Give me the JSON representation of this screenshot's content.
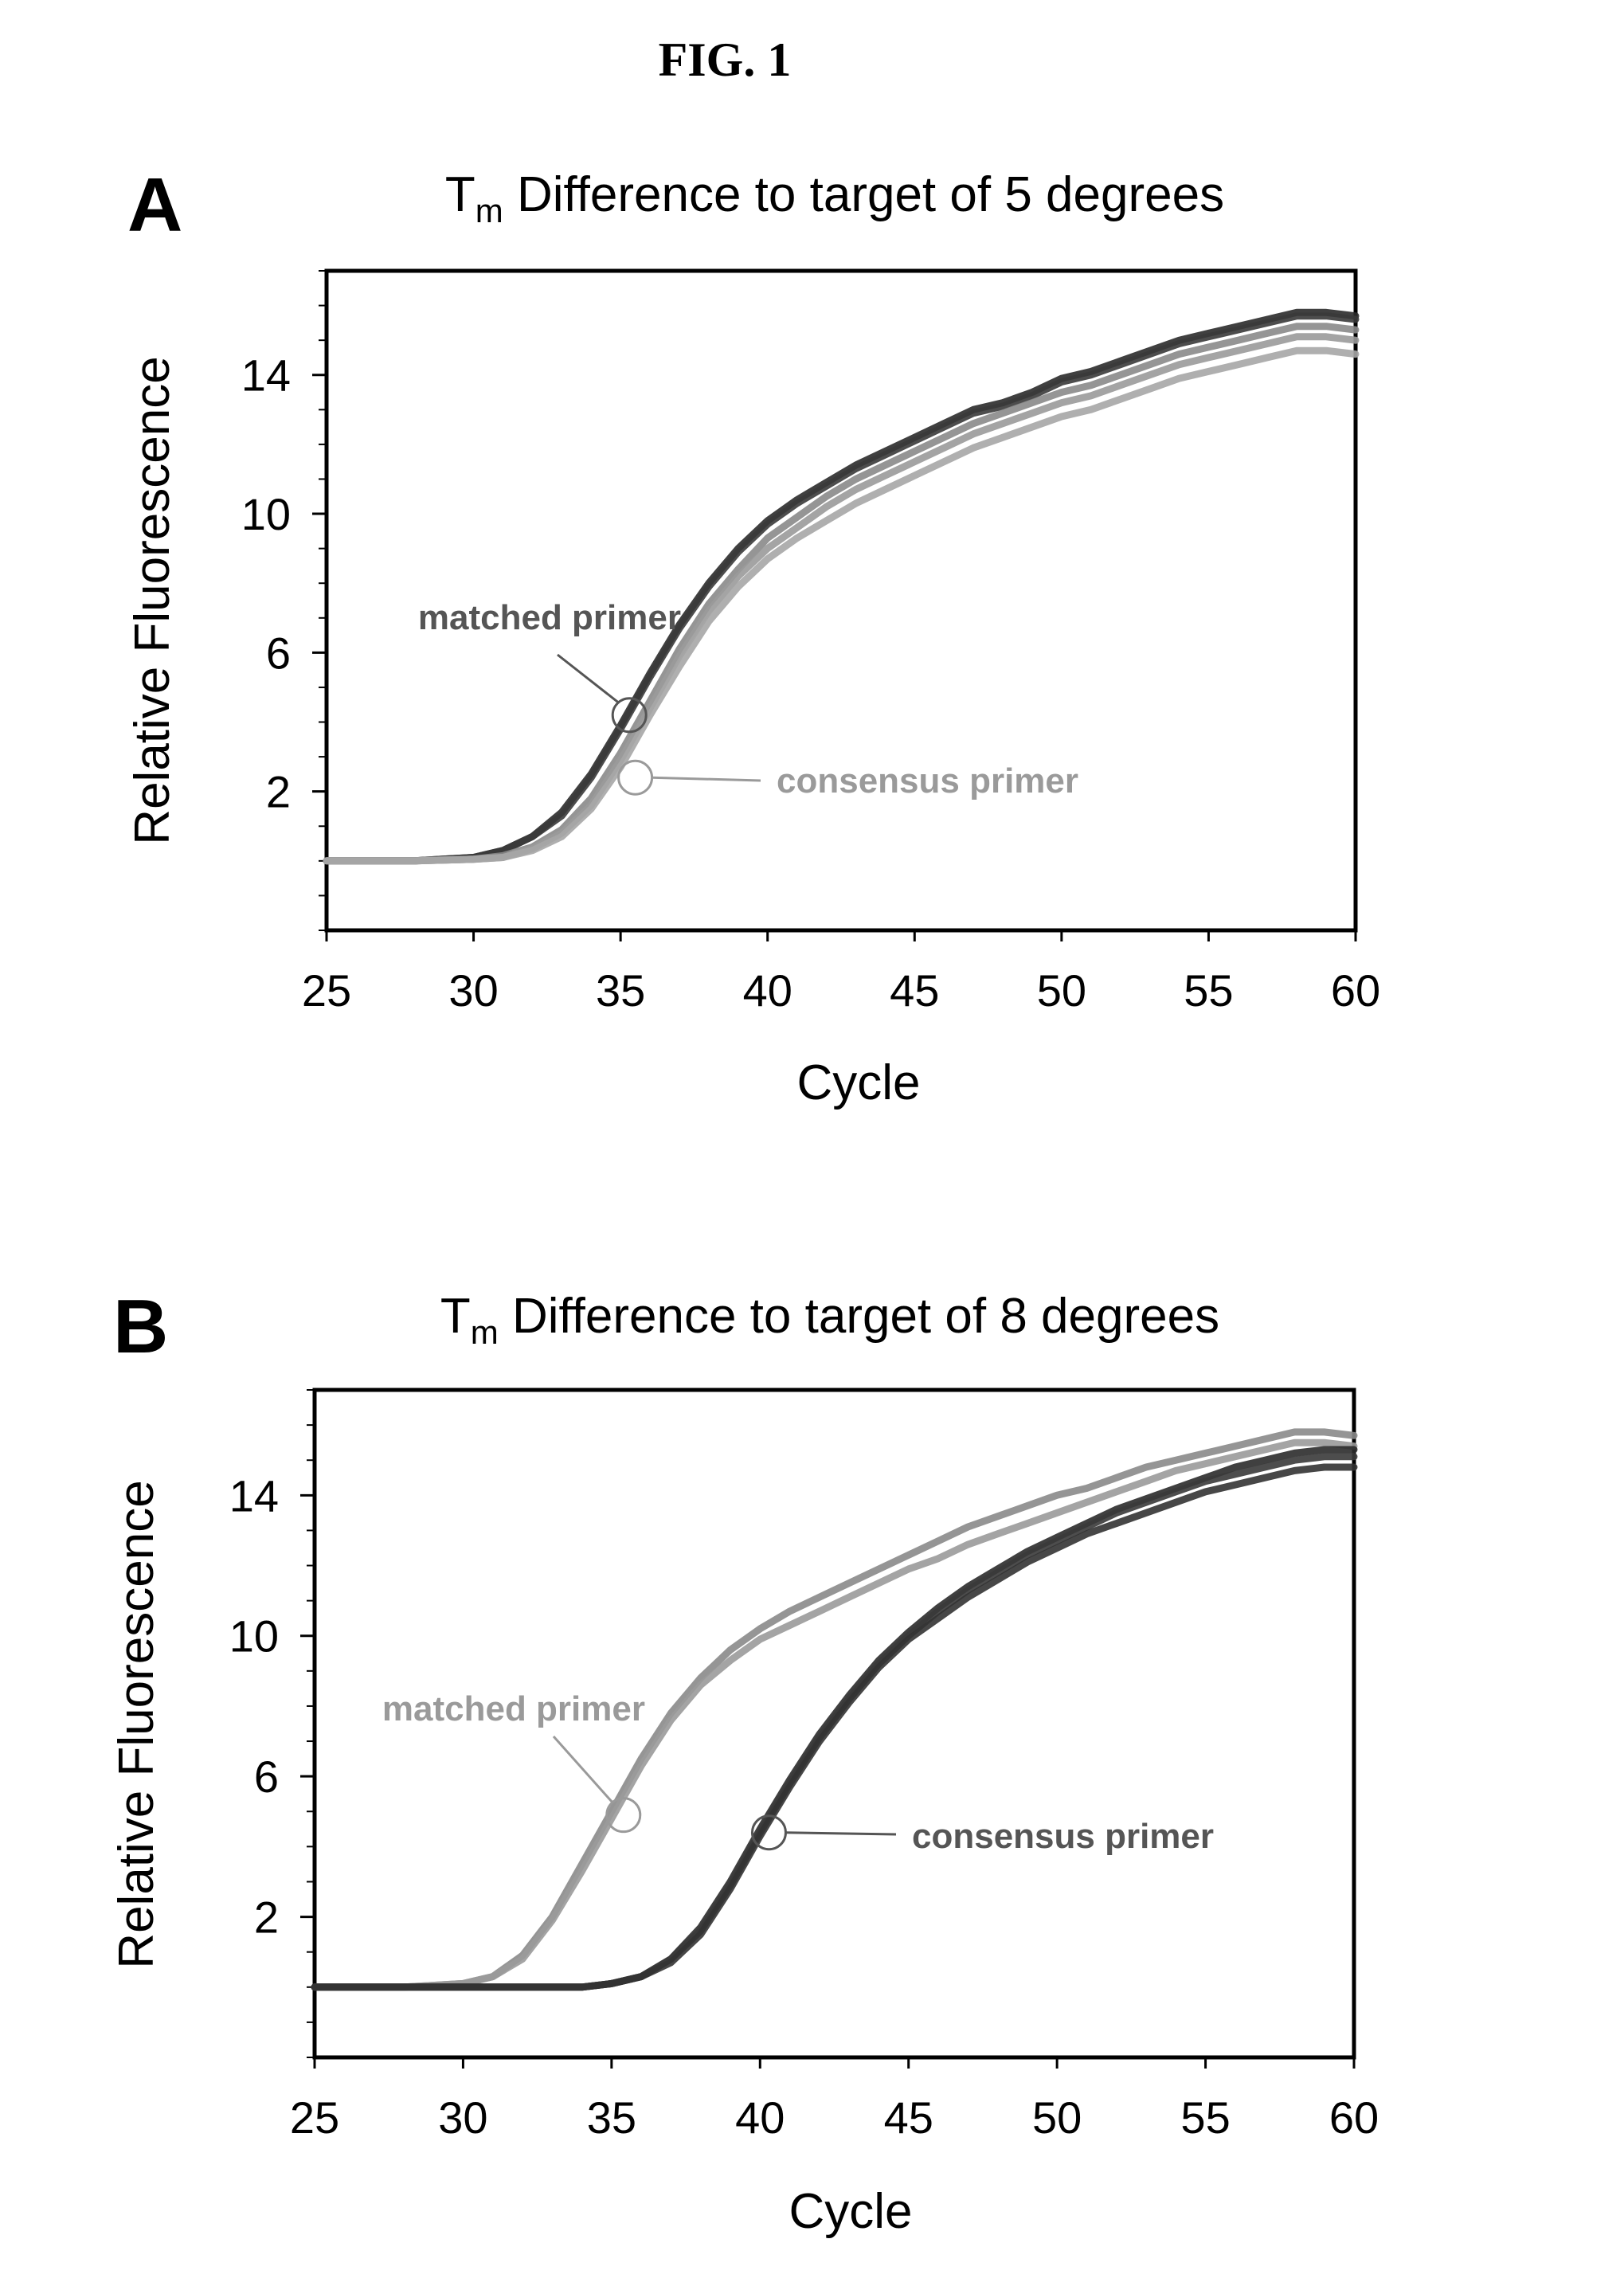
{
  "figure": {
    "title": "FIG. 1"
  },
  "chart_data": [
    {
      "panel": "A",
      "type": "line",
      "title_main": "T",
      "title_sub": "m",
      "title_rest": " Difference to target of 5 degrees",
      "xlabel": "Cycle",
      "ylabel": "Relative Fluorescence",
      "xlim": [
        25,
        60
      ],
      "ylim": [
        -2,
        17
      ],
      "xticks": [
        25,
        30,
        35,
        40,
        45,
        50,
        55,
        60
      ],
      "yticks": [
        2,
        6,
        10,
        14
      ],
      "grid": false,
      "annotations": [
        {
          "text": "matched primer",
          "color": "#555555",
          "point": [
            35.3,
            4.2
          ]
        },
        {
          "text": "consensus primer",
          "color": "#9a9a9a",
          "point": [
            35.5,
            2.4
          ]
        }
      ],
      "series": [
        {
          "group": "matched",
          "color": "#2b2b2b",
          "x": [
            25,
            28,
            30,
            31,
            32,
            33,
            34,
            35,
            36,
            37,
            38,
            39,
            40,
            41,
            42,
            43,
            44,
            45,
            46,
            47,
            48,
            49,
            50,
            51,
            52,
            53,
            54,
            55,
            56,
            57,
            58,
            59,
            60
          ],
          "y": [
            0,
            0,
            0.1,
            0.3,
            0.7,
            1.4,
            2.5,
            3.9,
            5.4,
            6.8,
            8.0,
            9.0,
            9.8,
            10.4,
            10.9,
            11.4,
            11.8,
            12.2,
            12.6,
            13.0,
            13.2,
            13.5,
            13.9,
            14.1,
            14.4,
            14.7,
            15.0,
            15.2,
            15.4,
            15.6,
            15.8,
            15.8,
            15.7
          ]
        },
        {
          "group": "matched",
          "color": "#3a3a3a",
          "x": [
            25,
            28,
            30,
            31,
            32,
            33,
            34,
            35,
            36,
            37,
            38,
            39,
            40,
            41,
            42,
            43,
            44,
            45,
            46,
            47,
            48,
            49,
            50,
            51,
            52,
            53,
            54,
            55,
            56,
            57,
            58,
            59,
            60
          ],
          "y": [
            0,
            0,
            0.1,
            0.3,
            0.7,
            1.3,
            2.4,
            3.8,
            5.3,
            6.7,
            7.9,
            8.9,
            9.7,
            10.3,
            10.8,
            11.3,
            11.7,
            12.1,
            12.5,
            12.9,
            13.1,
            13.4,
            13.8,
            14.0,
            14.3,
            14.6,
            14.9,
            15.1,
            15.3,
            15.5,
            15.7,
            15.7,
            15.6
          ]
        },
        {
          "group": "consensus",
          "color": "#8a8a8a",
          "x": [
            25,
            28,
            30,
            31,
            32,
            33,
            34,
            35,
            36,
            37,
            38,
            39,
            40,
            41,
            42,
            43,
            44,
            45,
            46,
            47,
            48,
            49,
            50,
            51,
            52,
            53,
            54,
            55,
            56,
            57,
            58,
            59,
            60
          ],
          "y": [
            0,
            0,
            0.05,
            0.15,
            0.4,
            0.9,
            1.8,
            3.1,
            4.6,
            6.1,
            7.4,
            8.4,
            9.3,
            9.9,
            10.5,
            11.0,
            11.4,
            11.8,
            12.2,
            12.6,
            12.9,
            13.2,
            13.5,
            13.7,
            14.0,
            14.3,
            14.6,
            14.8,
            15.0,
            15.2,
            15.4,
            15.4,
            15.3
          ]
        },
        {
          "group": "consensus",
          "color": "#9a9a9a",
          "x": [
            25,
            28,
            30,
            31,
            32,
            33,
            34,
            35,
            36,
            37,
            38,
            39,
            40,
            41,
            42,
            43,
            44,
            45,
            46,
            47,
            48,
            49,
            50,
            51,
            52,
            53,
            54,
            55,
            56,
            57,
            58,
            59,
            60
          ],
          "y": [
            0,
            0,
            0.05,
            0.1,
            0.35,
            0.8,
            1.6,
            2.9,
            4.4,
            5.9,
            7.2,
            8.2,
            9.0,
            9.6,
            10.2,
            10.7,
            11.1,
            11.5,
            11.9,
            12.3,
            12.6,
            12.9,
            13.2,
            13.4,
            13.7,
            14.0,
            14.3,
            14.5,
            14.7,
            14.9,
            15.1,
            15.1,
            15.0
          ]
        },
        {
          "group": "consensus",
          "color": "#a6a6a6",
          "x": [
            25,
            28,
            30,
            31,
            32,
            33,
            34,
            35,
            36,
            37,
            38,
            39,
            40,
            41,
            42,
            43,
            44,
            45,
            46,
            47,
            48,
            49,
            50,
            51,
            52,
            53,
            54,
            55,
            56,
            57,
            58,
            59,
            60
          ],
          "y": [
            0,
            0,
            0.05,
            0.1,
            0.3,
            0.7,
            1.5,
            2.7,
            4.2,
            5.6,
            6.9,
            7.9,
            8.7,
            9.3,
            9.8,
            10.3,
            10.7,
            11.1,
            11.5,
            11.9,
            12.2,
            12.5,
            12.8,
            13.0,
            13.3,
            13.6,
            13.9,
            14.1,
            14.3,
            14.5,
            14.7,
            14.7,
            14.6
          ]
        }
      ]
    },
    {
      "panel": "B",
      "type": "line",
      "title_main": "T",
      "title_sub": "m",
      "title_rest": " Difference to target of 8 degrees",
      "xlabel": "Cycle",
      "ylabel": "Relative Fluorescence",
      "xlim": [
        25,
        60
      ],
      "ylim": [
        -2,
        17
      ],
      "xticks": [
        25,
        30,
        35,
        40,
        45,
        50,
        55,
        60
      ],
      "yticks": [
        2,
        6,
        10,
        14
      ],
      "grid": false,
      "annotations": [
        {
          "text": "matched primer",
          "color": "#9a9a9a",
          "point": [
            35.4,
            4.9
          ]
        },
        {
          "text": "consensus primer",
          "color": "#555555",
          "point": [
            40.3,
            4.4
          ]
        }
      ],
      "series": [
        {
          "group": "matched",
          "color": "#8a8a8a",
          "x": [
            25,
            28,
            30,
            31,
            32,
            33,
            34,
            35,
            36,
            37,
            38,
            39,
            40,
            41,
            42,
            43,
            44,
            45,
            46,
            47,
            48,
            49,
            50,
            51,
            52,
            53,
            54,
            55,
            56,
            57,
            58,
            59,
            60
          ],
          "y": [
            0,
            0,
            0.1,
            0.3,
            0.9,
            2.0,
            3.5,
            5.0,
            6.5,
            7.8,
            8.8,
            9.6,
            10.2,
            10.7,
            11.1,
            11.5,
            11.9,
            12.3,
            12.7,
            13.1,
            13.4,
            13.7,
            14.0,
            14.2,
            14.5,
            14.8,
            15.0,
            15.2,
            15.4,
            15.6,
            15.8,
            15.8,
            15.7
          ]
        },
        {
          "group": "matched",
          "color": "#9a9a9a",
          "x": [
            25,
            28,
            30,
            31,
            32,
            33,
            34,
            35,
            36,
            37,
            38,
            39,
            40,
            41,
            42,
            43,
            44,
            45,
            46,
            47,
            48,
            49,
            50,
            51,
            52,
            53,
            54,
            55,
            56,
            57,
            58,
            59,
            60
          ],
          "y": [
            0,
            0,
            0.1,
            0.3,
            0.8,
            1.9,
            3.3,
            4.8,
            6.3,
            7.6,
            8.6,
            9.3,
            9.9,
            10.3,
            10.7,
            11.1,
            11.5,
            11.9,
            12.2,
            12.6,
            12.9,
            13.2,
            13.5,
            13.8,
            14.1,
            14.4,
            14.7,
            14.9,
            15.1,
            15.3,
            15.5,
            15.5,
            15.4
          ]
        },
        {
          "group": "consensus",
          "color": "#2b2b2b",
          "x": [
            25,
            28,
            30,
            32,
            34,
            35,
            36,
            37,
            38,
            39,
            40,
            41,
            42,
            43,
            44,
            45,
            46,
            47,
            48,
            49,
            50,
            51,
            52,
            53,
            54,
            55,
            56,
            57,
            58,
            59,
            60
          ],
          "y": [
            0,
            0,
            0,
            0,
            0,
            0.1,
            0.3,
            0.8,
            1.7,
            3.0,
            4.5,
            5.9,
            7.2,
            8.3,
            9.3,
            10.1,
            10.8,
            11.4,
            11.9,
            12.4,
            12.8,
            13.2,
            13.6,
            13.9,
            14.2,
            14.5,
            14.8,
            15.0,
            15.2,
            15.3,
            15.3
          ]
        },
        {
          "group": "consensus",
          "color": "#3a3a3a",
          "x": [
            25,
            28,
            30,
            32,
            34,
            35,
            36,
            37,
            38,
            39,
            40,
            41,
            42,
            43,
            44,
            45,
            46,
            47,
            48,
            49,
            50,
            51,
            52,
            53,
            54,
            55,
            56,
            57,
            58,
            59,
            60
          ],
          "y": [
            0,
            0,
            0,
            0,
            0,
            0.1,
            0.3,
            0.8,
            1.6,
            2.9,
            4.4,
            5.8,
            7.1,
            8.2,
            9.2,
            10.0,
            10.7,
            11.3,
            11.8,
            12.3,
            12.7,
            13.1,
            13.5,
            13.8,
            14.1,
            14.4,
            14.6,
            14.8,
            15.0,
            15.1,
            15.1
          ]
        },
        {
          "group": "consensus",
          "color": "#333333",
          "x": [
            25,
            28,
            30,
            32,
            34,
            35,
            36,
            37,
            38,
            39,
            40,
            41,
            42,
            43,
            44,
            45,
            46,
            47,
            48,
            49,
            50,
            51,
            52,
            53,
            54,
            55,
            56,
            57,
            58,
            59,
            60
          ],
          "y": [
            0,
            0,
            0,
            0,
            0,
            0.1,
            0.3,
            0.7,
            1.5,
            2.8,
            4.3,
            5.7,
            7.0,
            8.1,
            9.1,
            9.9,
            10.5,
            11.1,
            11.6,
            12.1,
            12.5,
            12.9,
            13.2,
            13.5,
            13.8,
            14.1,
            14.3,
            14.5,
            14.7,
            14.8,
            14.8
          ]
        }
      ]
    }
  ]
}
